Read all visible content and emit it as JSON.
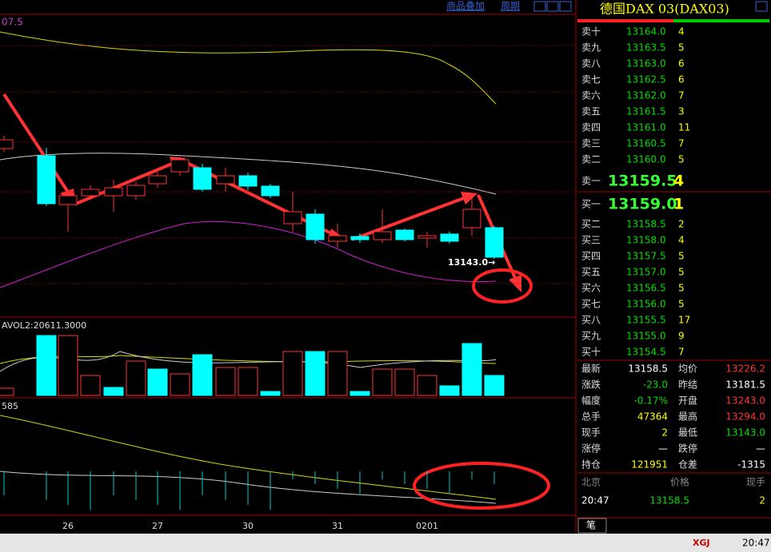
{
  "toolbar": {
    "overlay": "商品叠加",
    "period": "周期"
  },
  "chart": {
    "ma_label": "07.5",
    "low_label": "13143.0→",
    "volume_label": "AVOL2:20611.3000",
    "indicator_label": "585",
    "x_labels": [
      "26",
      "27",
      "30",
      "31",
      "0201"
    ]
  },
  "quote": {
    "title": "德国DAX 03(DAX03)",
    "asks": [
      {
        "label": "卖十",
        "price": "13164.0",
        "volume": "4"
      },
      {
        "label": "卖九",
        "price": "13163.5",
        "volume": "5"
      },
      {
        "label": "卖八",
        "price": "13163.0",
        "volume": "6"
      },
      {
        "label": "卖七",
        "price": "13162.5",
        "volume": "6"
      },
      {
        "label": "卖六",
        "price": "13162.0",
        "volume": "7"
      },
      {
        "label": "卖五",
        "price": "13161.5",
        "volume": "3"
      },
      {
        "label": "卖四",
        "price": "13161.0",
        "volume": "11"
      },
      {
        "label": "卖三",
        "price": "13160.5",
        "volume": "7"
      },
      {
        "label": "卖二",
        "price": "13160.0",
        "volume": "5"
      },
      {
        "label": "卖一",
        "price": "13159.5",
        "volume": "4"
      }
    ],
    "bids": [
      {
        "label": "买一",
        "price": "13159.0",
        "volume": "1"
      },
      {
        "label": "买二",
        "price": "13158.5",
        "volume": "2"
      },
      {
        "label": "买三",
        "price": "13158.0",
        "volume": "4"
      },
      {
        "label": "买四",
        "price": "13157.5",
        "volume": "5"
      },
      {
        "label": "买五",
        "price": "13157.0",
        "volume": "5"
      },
      {
        "label": "买六",
        "price": "13156.5",
        "volume": "5"
      },
      {
        "label": "买七",
        "price": "13156.0",
        "volume": "5"
      },
      {
        "label": "买八",
        "price": "13155.5",
        "volume": "17"
      },
      {
        "label": "买九",
        "price": "13155.0",
        "volume": "9"
      },
      {
        "label": "买十",
        "price": "13154.5",
        "volume": "7"
      }
    ],
    "stats": [
      [
        "最新",
        "13158.5",
        "均价",
        "13226.2"
      ],
      [
        "涨跌",
        "-23.0",
        "昨结",
        "13181.5"
      ],
      [
        "幅度",
        "-0.17%",
        "开盘",
        "13243.0"
      ],
      [
        "总手",
        "47364",
        "最高",
        "13294.0"
      ],
      [
        "现手",
        "2",
        "最低",
        "13143.0"
      ],
      [
        "涨停",
        "—",
        "跌停",
        "—"
      ],
      [
        "持仓",
        "121951",
        "仓差",
        "-1315"
      ]
    ],
    "ticks": {
      "headers": [
        "北京",
        "价格",
        "现手"
      ],
      "rows": [
        [
          "20:47",
          "13158.5",
          "2"
        ]
      ]
    },
    "tab": "笔"
  },
  "status": {
    "brand": "XGJ",
    "time": "20:47"
  }
}
